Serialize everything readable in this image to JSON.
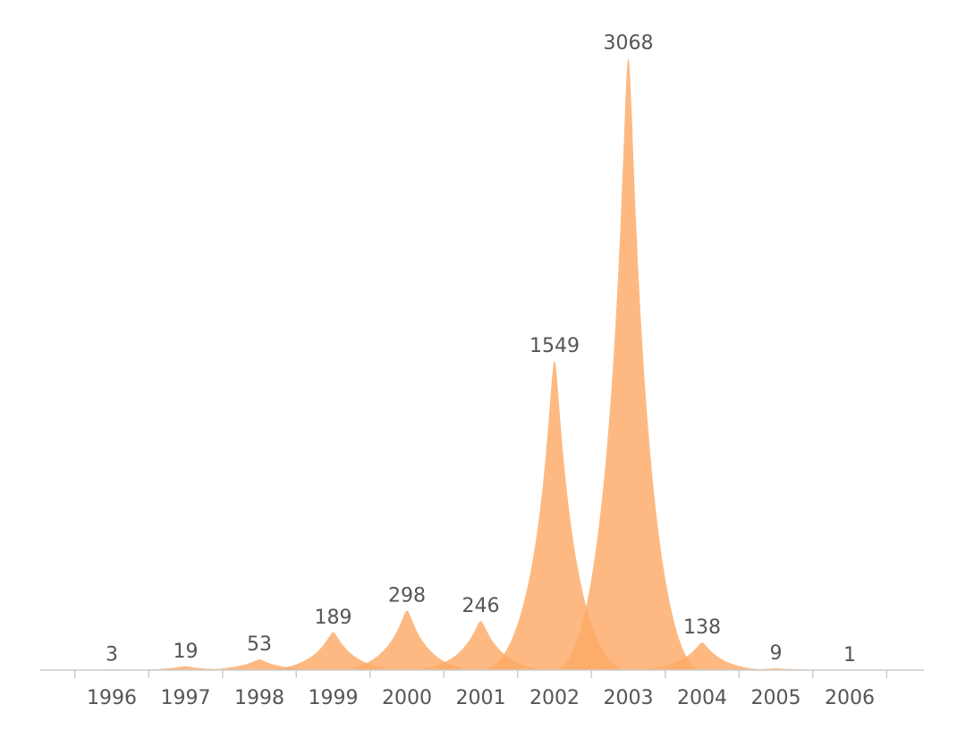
{
  "chart_data": {
    "type": "area",
    "title": "",
    "xlabel": "",
    "ylabel": "",
    "categories": [
      "1996",
      "1997",
      "1998",
      "1999",
      "2000",
      "2001",
      "2002",
      "2003",
      "2004",
      "2005",
      "2006"
    ],
    "values": [
      3,
      19,
      53,
      189,
      298,
      246,
      1549,
      3068,
      138,
      9,
      1
    ],
    "ylim": [
      0,
      3068
    ],
    "grid": false,
    "legend": "none",
    "colors": {
      "fill": "#FDA965",
      "axis": "#CCCCCC",
      "text": "#555555"
    }
  }
}
